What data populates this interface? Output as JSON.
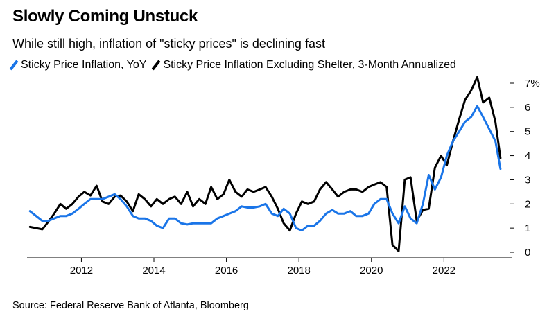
{
  "title": "Slowly Coming Unstuck",
  "subtitle": "While still high, inflation of \"sticky prices\" is declining fast",
  "source": "Source: Federal Reserve Bank of Atlanta, Bloomberg",
  "chart_data": {
    "type": "line",
    "title": "Slowly Coming Unstuck",
    "subtitle": "While still high, inflation of \"sticky prices\" is declining fast",
    "xlabel": "",
    "ylabel": "",
    "xlim": [
      2010.5,
      2023.6
    ],
    "ylim": [
      0,
      7
    ],
    "x_ticks": [
      2012,
      2014,
      2016,
      2018,
      2020,
      2022
    ],
    "x_tick_labels": [
      "2012",
      "2014",
      "2016",
      "2018",
      "2020",
      "2022"
    ],
    "y_ticks": [
      0,
      1,
      2,
      3,
      4,
      5,
      6,
      7
    ],
    "y_tick_labels": [
      "0",
      "1",
      "2",
      "3",
      "4",
      "5",
      "6",
      "7%"
    ],
    "y_axis_side": "right",
    "grid": false,
    "legend_position": "top",
    "series": [
      {
        "name": "Sticky Price Inflation, YoY",
        "color": "#1a75e8",
        "points": [
          [
            2010.58,
            1.7
          ],
          [
            2010.75,
            1.5
          ],
          [
            2010.92,
            1.3
          ],
          [
            2011.08,
            1.3
          ],
          [
            2011.25,
            1.4
          ],
          [
            2011.42,
            1.5
          ],
          [
            2011.58,
            1.5
          ],
          [
            2011.75,
            1.6
          ],
          [
            2011.92,
            1.8
          ],
          [
            2012.08,
            2.0
          ],
          [
            2012.25,
            2.2
          ],
          [
            2012.42,
            2.2
          ],
          [
            2012.58,
            2.2
          ],
          [
            2012.75,
            2.3
          ],
          [
            2012.92,
            2.4
          ],
          [
            2013.08,
            2.2
          ],
          [
            2013.25,
            1.9
          ],
          [
            2013.42,
            1.5
          ],
          [
            2013.58,
            1.4
          ],
          [
            2013.75,
            1.4
          ],
          [
            2013.92,
            1.3
          ],
          [
            2014.08,
            1.1
          ],
          [
            2014.25,
            1.0
          ],
          [
            2014.42,
            1.4
          ],
          [
            2014.58,
            1.4
          ],
          [
            2014.75,
            1.2
          ],
          [
            2014.92,
            1.15
          ],
          [
            2015.08,
            1.2
          ],
          [
            2015.25,
            1.2
          ],
          [
            2015.42,
            1.2
          ],
          [
            2015.58,
            1.2
          ],
          [
            2015.75,
            1.4
          ],
          [
            2015.92,
            1.5
          ],
          [
            2016.08,
            1.6
          ],
          [
            2016.25,
            1.7
          ],
          [
            2016.42,
            1.9
          ],
          [
            2016.58,
            1.85
          ],
          [
            2016.75,
            1.85
          ],
          [
            2016.92,
            1.9
          ],
          [
            2017.08,
            2.0
          ],
          [
            2017.25,
            1.6
          ],
          [
            2017.42,
            1.5
          ],
          [
            2017.58,
            1.8
          ],
          [
            2017.75,
            1.6
          ],
          [
            2017.92,
            1.0
          ],
          [
            2018.08,
            0.9
          ],
          [
            2018.25,
            1.1
          ],
          [
            2018.42,
            1.1
          ],
          [
            2018.58,
            1.3
          ],
          [
            2018.75,
            1.6
          ],
          [
            2018.92,
            1.75
          ],
          [
            2019.08,
            1.6
          ],
          [
            2019.25,
            1.6
          ],
          [
            2019.42,
            1.7
          ],
          [
            2019.58,
            1.5
          ],
          [
            2019.75,
            1.5
          ],
          [
            2019.92,
            1.6
          ],
          [
            2020.08,
            2.0
          ],
          [
            2020.25,
            2.2
          ],
          [
            2020.42,
            2.2
          ],
          [
            2020.58,
            1.6
          ],
          [
            2020.75,
            1.2
          ],
          [
            2020.92,
            1.9
          ],
          [
            2021.08,
            1.4
          ],
          [
            2021.25,
            1.2
          ],
          [
            2021.42,
            2.0
          ],
          [
            2021.58,
            3.2
          ],
          [
            2021.75,
            2.6
          ],
          [
            2021.92,
            3.1
          ],
          [
            2022.08,
            4.0
          ],
          [
            2022.25,
            4.6
          ],
          [
            2022.42,
            5.0
          ],
          [
            2022.58,
            5.4
          ],
          [
            2022.75,
            5.6
          ],
          [
            2022.92,
            6.05
          ],
          [
            2023.08,
            5.6
          ],
          [
            2023.25,
            5.1
          ],
          [
            2023.42,
            4.6
          ],
          [
            2023.56,
            3.45
          ]
        ]
      },
      {
        "name": "Sticky Price Inflation Excluding Shelter, 3-Month Annualized",
        "color": "#000000",
        "points": [
          [
            2010.58,
            1.05
          ],
          [
            2010.75,
            1.0
          ],
          [
            2010.92,
            0.95
          ],
          [
            2011.08,
            1.25
          ],
          [
            2011.25,
            1.6
          ],
          [
            2011.42,
            2.0
          ],
          [
            2011.58,
            1.8
          ],
          [
            2011.75,
            2.0
          ],
          [
            2011.92,
            2.3
          ],
          [
            2012.08,
            2.5
          ],
          [
            2012.25,
            2.35
          ],
          [
            2012.42,
            2.75
          ],
          [
            2012.58,
            2.1
          ],
          [
            2012.75,
            2.0
          ],
          [
            2012.92,
            2.3
          ],
          [
            2013.08,
            2.35
          ],
          [
            2013.25,
            2.1
          ],
          [
            2013.42,
            1.7
          ],
          [
            2013.58,
            2.4
          ],
          [
            2013.75,
            2.2
          ],
          [
            2013.92,
            1.9
          ],
          [
            2014.08,
            2.2
          ],
          [
            2014.25,
            2.0
          ],
          [
            2014.42,
            2.2
          ],
          [
            2014.58,
            2.3
          ],
          [
            2014.75,
            2.0
          ],
          [
            2014.92,
            2.5
          ],
          [
            2015.08,
            1.9
          ],
          [
            2015.25,
            2.2
          ],
          [
            2015.42,
            2.0
          ],
          [
            2015.58,
            2.7
          ],
          [
            2015.75,
            2.2
          ],
          [
            2015.92,
            2.4
          ],
          [
            2016.08,
            3.0
          ],
          [
            2016.25,
            2.5
          ],
          [
            2016.42,
            2.3
          ],
          [
            2016.58,
            2.6
          ],
          [
            2016.75,
            2.5
          ],
          [
            2016.92,
            2.6
          ],
          [
            2017.08,
            2.7
          ],
          [
            2017.25,
            2.3
          ],
          [
            2017.42,
            1.8
          ],
          [
            2017.58,
            1.2
          ],
          [
            2017.75,
            0.9
          ],
          [
            2017.92,
            1.6
          ],
          [
            2018.08,
            2.1
          ],
          [
            2018.25,
            2.0
          ],
          [
            2018.42,
            2.1
          ],
          [
            2018.58,
            2.6
          ],
          [
            2018.75,
            2.9
          ],
          [
            2018.92,
            2.6
          ],
          [
            2019.08,
            2.3
          ],
          [
            2019.25,
            2.5
          ],
          [
            2019.42,
            2.6
          ],
          [
            2019.58,
            2.6
          ],
          [
            2019.75,
            2.5
          ],
          [
            2019.92,
            2.7
          ],
          [
            2020.08,
            2.8
          ],
          [
            2020.25,
            2.9
          ],
          [
            2020.42,
            2.7
          ],
          [
            2020.58,
            0.3
          ],
          [
            2020.75,
            0.05
          ],
          [
            2020.92,
            3.0
          ],
          [
            2021.08,
            3.1
          ],
          [
            2021.25,
            1.3
          ],
          [
            2021.42,
            1.75
          ],
          [
            2021.58,
            1.8
          ],
          [
            2021.75,
            3.5
          ],
          [
            2021.92,
            4.0
          ],
          [
            2022.08,
            3.6
          ],
          [
            2022.25,
            4.6
          ],
          [
            2022.42,
            5.5
          ],
          [
            2022.58,
            6.3
          ],
          [
            2022.75,
            6.7
          ],
          [
            2022.92,
            7.25
          ],
          [
            2023.08,
            6.2
          ],
          [
            2023.25,
            6.4
          ],
          [
            2023.42,
            5.4
          ],
          [
            2023.56,
            3.9
          ]
        ]
      }
    ]
  }
}
